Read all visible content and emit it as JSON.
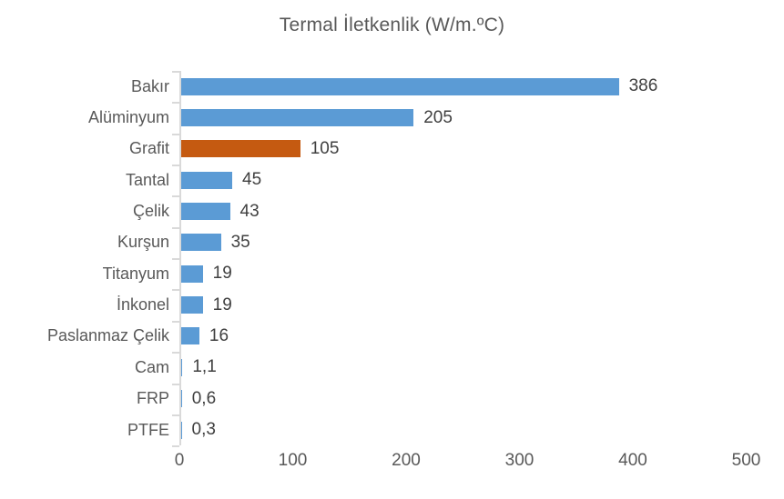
{
  "chart_data": {
    "type": "bar",
    "orientation": "horizontal",
    "title": "Termal İletkenlik (W/m.ºC)",
    "xlabel": "",
    "ylabel": "",
    "categories": [
      "Bakır",
      "Alüminyum",
      "Grafit",
      "Tantal",
      "Çelik",
      "Kurşun",
      "Titanyum",
      "İnkonel",
      "Paslanmaz Çelik",
      "Cam",
      "FRP",
      "PTFE"
    ],
    "values": [
      386,
      205,
      105,
      45,
      43,
      35,
      19,
      19,
      16,
      1.1,
      0.6,
      0.3
    ],
    "value_labels": [
      "386",
      "205",
      "105",
      "45",
      "43",
      "35",
      "19",
      "19",
      "16",
      "1,1",
      "0,6",
      "0,3"
    ],
    "xlim": [
      0,
      500
    ],
    "x_ticks": [
      0,
      100,
      200,
      300,
      400,
      500
    ],
    "x_tick_labels": [
      "0",
      "100",
      "200",
      "300",
      "400",
      "500"
    ],
    "grid": false,
    "legend": false,
    "highlight_category": "Grafit",
    "colors": {
      "default_bar": "#5B9BD5",
      "highlight_bar": "#C55A11",
      "axis_line": "#D9D9D9",
      "title_text": "#595959",
      "category_text": "#595959",
      "value_text": "#404040",
      "axis_text": "#595959"
    }
  }
}
